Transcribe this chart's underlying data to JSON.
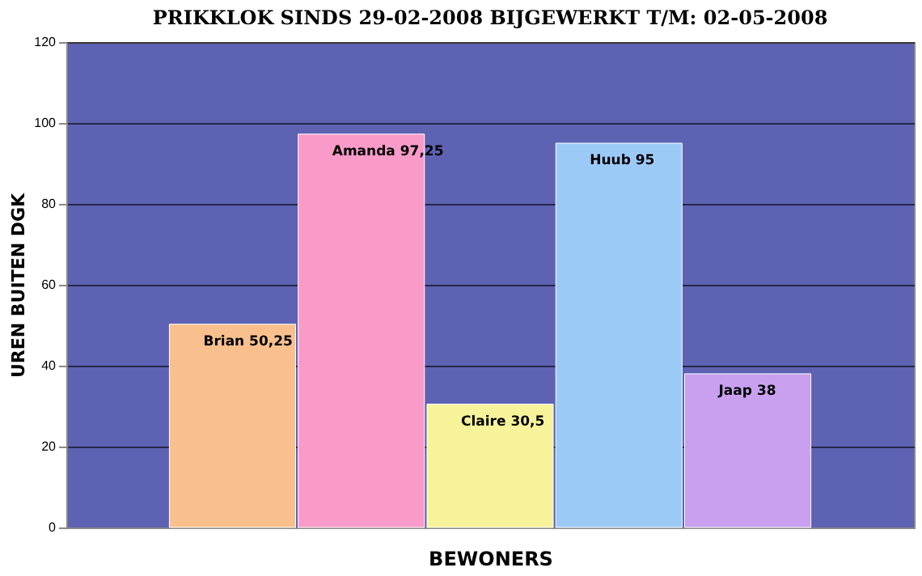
{
  "chart_data": {
    "type": "bar",
    "title": "PRIKKLOK SINDS 29-02-2008 BIJGEWERKT T/M: 02-05-2008",
    "xlabel": "BEWONERS",
    "ylabel": "UREN BUITEN DGK",
    "categories": [
      null,
      null,
      null,
      null,
      null
    ],
    "values": [
      50.25,
      97.25,
      30.5,
      95,
      38
    ],
    "colors": [
      "#f9c08e",
      "#f99ac8",
      "#f7f39a",
      "#9ccaf7",
      "#c9a0f0"
    ],
    "value_labels": [
      "Brian 50,25",
      "Amanda 97,25",
      "Claire 30,5",
      "Huub 95",
      "Jaap 38"
    ],
    "ylim": [
      0,
      120
    ],
    "yticks": [
      0,
      20,
      40,
      60,
      80,
      100,
      120
    ],
    "grid": "y"
  }
}
